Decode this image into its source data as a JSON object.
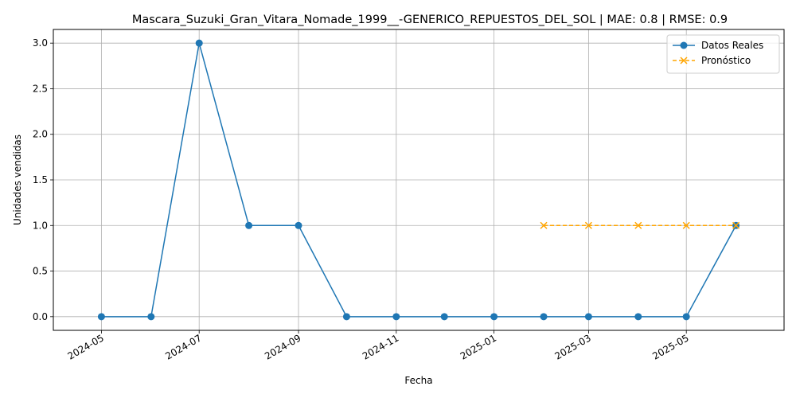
{
  "chart_data": {
    "type": "line",
    "title": "Mascara_Suzuki_Gran_Vitara_Nomade_1999__-GENERICO_REPUESTOS_DEL_SOL | MAE: 0.8 | RMSE: 0.9",
    "xlabel": "Fecha",
    "ylabel": "Unidades vendidas",
    "x_ticks": [
      "2024-05",
      "2024-07",
      "2024-09",
      "2024-11",
      "2025-01",
      "2025-03",
      "2025-05"
    ],
    "y_ticks": [
      "0.0",
      "0.5",
      "1.0",
      "1.5",
      "2.0",
      "2.5",
      "3.0"
    ],
    "ylim": [
      -0.15,
      3.15
    ],
    "xlim": [
      "2024-04-01",
      "2025-07-01"
    ],
    "grid": true,
    "legend_position": "top-right",
    "series": [
      {
        "name": "Datos Reales",
        "color": "#1f77b4",
        "marker": "circle",
        "linestyle": "solid",
        "points": [
          {
            "x": "2024-05-01",
            "y": 0
          },
          {
            "x": "2024-06-01",
            "y": 0
          },
          {
            "x": "2024-07-01",
            "y": 3
          },
          {
            "x": "2024-08-01",
            "y": 1
          },
          {
            "x": "2024-09-01",
            "y": 1
          },
          {
            "x": "2024-10-01",
            "y": 0
          },
          {
            "x": "2024-11-01",
            "y": 0
          },
          {
            "x": "2024-12-01",
            "y": 0
          },
          {
            "x": "2025-01-01",
            "y": 0
          },
          {
            "x": "2025-02-01",
            "y": 0
          },
          {
            "x": "2025-03-01",
            "y": 0
          },
          {
            "x": "2025-04-01",
            "y": 0
          },
          {
            "x": "2025-05-01",
            "y": 0
          },
          {
            "x": "2025-06-01",
            "y": 1
          }
        ]
      },
      {
        "name": "Pronóstico",
        "color": "#ffa500",
        "marker": "x",
        "linestyle": "dashed",
        "points": [
          {
            "x": "2025-02-01",
            "y": 1
          },
          {
            "x": "2025-03-01",
            "y": 1
          },
          {
            "x": "2025-04-01",
            "y": 1
          },
          {
            "x": "2025-05-01",
            "y": 1
          },
          {
            "x": "2025-06-01",
            "y": 1
          }
        ]
      }
    ]
  }
}
